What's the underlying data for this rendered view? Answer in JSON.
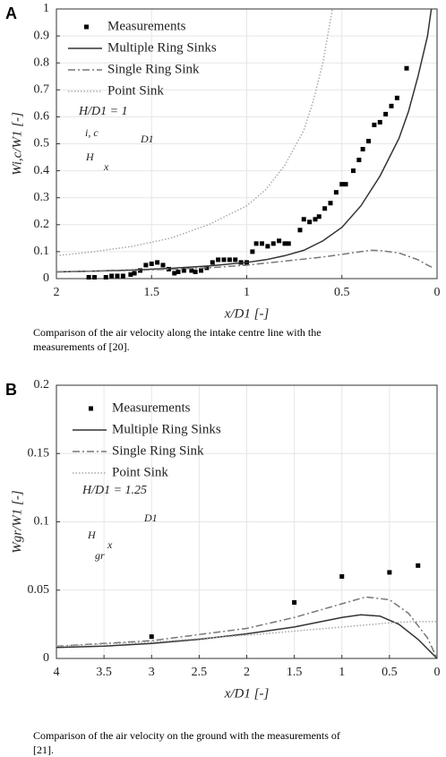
{
  "chart_data": [
    {
      "type": "line",
      "panel": "A",
      "xlabel": "x/D1 [-]",
      "ylabel": "Wi,c/W1 [-]",
      "caption": [
        "Comparison of the air velocity along the intake centre line with the",
        "measurements of [20]."
      ],
      "annotation": "H/D1 = 1",
      "inset_labels": [
        "i, c",
        "D1",
        "H",
        "x"
      ],
      "xlim": [
        2,
        0
      ],
      "xticks": [
        2,
        1.5,
        1,
        0.5,
        0
      ],
      "ylim": [
        0,
        1
      ],
      "yticks": [
        0,
        0.1,
        0.2,
        0.3,
        0.4,
        0.5,
        0.6,
        0.7,
        0.8,
        0.9,
        1
      ],
      "grid": true,
      "legend": "upper left",
      "series": [
        {
          "name": "Measurements",
          "color": "#000000",
          "style": "marker",
          "x": [
            1.83,
            1.8,
            1.74,
            1.71,
            1.68,
            1.65,
            1.61,
            1.59,
            1.56,
            1.53,
            1.5,
            1.47,
            1.44,
            1.41,
            1.38,
            1.36,
            1.33,
            1.29,
            1.27,
            1.24,
            1.21,
            1.18,
            1.15,
            1.12,
            1.09,
            1.06,
            1.03,
            1.0,
            0.97,
            0.95,
            0.92,
            0.89,
            0.86,
            0.83,
            0.8,
            0.78,
            0.72,
            0.7,
            0.67,
            0.64,
            0.62,
            0.59,
            0.56,
            0.53,
            0.5,
            0.48,
            0.44,
            0.41,
            0.39,
            0.36,
            0.33,
            0.3,
            0.27,
            0.24,
            0.21,
            0.16
          ],
          "values": [
            0.005,
            0.005,
            0.005,
            0.01,
            0.01,
            0.01,
            0.015,
            0.02,
            0.03,
            0.05,
            0.055,
            0.06,
            0.05,
            0.035,
            0.02,
            0.025,
            0.03,
            0.03,
            0.025,
            0.03,
            0.04,
            0.06,
            0.07,
            0.07,
            0.07,
            0.07,
            0.06,
            0.06,
            0.1,
            0.13,
            0.13,
            0.12,
            0.13,
            0.14,
            0.13,
            0.13,
            0.18,
            0.22,
            0.21,
            0.22,
            0.23,
            0.26,
            0.28,
            0.32,
            0.35,
            0.35,
            0.4,
            0.44,
            0.48,
            0.51,
            0.57,
            0.58,
            0.61,
            0.64,
            0.67,
            0.78
          ]
        },
        {
          "name": "Multiple Ring Sinks",
          "color": "#333333",
          "style": "solid",
          "x": [
            2,
            1.8,
            1.6,
            1.4,
            1.2,
            1.0,
            0.9,
            0.8,
            0.7,
            0.6,
            0.5,
            0.4,
            0.3,
            0.2,
            0.15,
            0.1,
            0.05,
            0.03
          ],
          "values": [
            0.025,
            0.028,
            0.032,
            0.038,
            0.047,
            0.06,
            0.07,
            0.085,
            0.105,
            0.14,
            0.19,
            0.27,
            0.38,
            0.52,
            0.62,
            0.75,
            0.9,
            1.0
          ]
        },
        {
          "name": "Single Ring Sink",
          "color": "#777777",
          "style": "dashdot",
          "x": [
            2,
            1.6,
            1.2,
            1.0,
            0.8,
            0.6,
            0.5,
            0.4,
            0.35,
            0.3,
            0.2,
            0.1,
            0.05,
            0.02
          ],
          "values": [
            0.025,
            0.03,
            0.04,
            0.05,
            0.065,
            0.08,
            0.09,
            0.1,
            0.105,
            0.104,
            0.095,
            0.07,
            0.05,
            0.04
          ]
        },
        {
          "name": "Point Sink",
          "color": "#aaaaaa",
          "style": "dotted",
          "x": [
            2,
            1.8,
            1.6,
            1.4,
            1.2,
            1.0,
            0.9,
            0.8,
            0.7,
            0.65,
            0.6,
            0.55
          ],
          "values": [
            0.085,
            0.1,
            0.12,
            0.15,
            0.2,
            0.27,
            0.33,
            0.42,
            0.55,
            0.66,
            0.8,
            1.0
          ]
        }
      ]
    },
    {
      "type": "line",
      "panel": "B",
      "xlabel": "x/D1 [-]",
      "ylabel": "Wgr/W1 [-]",
      "caption": [
        "Comparison of the air velocity on the ground with the measurements of",
        "[21]."
      ],
      "annotation": "H/D1 = 1.25",
      "inset_labels": [
        "D1",
        "H",
        "gr",
        "x"
      ],
      "xlim": [
        4,
        0
      ],
      "xticks": [
        4,
        3.5,
        3,
        2.5,
        2,
        1.5,
        1,
        0.5,
        0
      ],
      "ylim": [
        0,
        0.2
      ],
      "yticks": [
        0,
        0.05,
        0.1,
        0.15,
        0.2
      ],
      "grid": true,
      "legend": "upper left",
      "series": [
        {
          "name": "Measurements",
          "color": "#000000",
          "style": "marker",
          "x": [
            3,
            1.5,
            1,
            0.5,
            0.2
          ],
          "values": [
            0.016,
            0.041,
            0.06,
            0.063,
            0.068
          ]
        },
        {
          "name": "Multiple Ring Sinks",
          "color": "#333333",
          "style": "solid",
          "x": [
            4,
            3.5,
            3,
            2.5,
            2,
            1.5,
            1,
            0.8,
            0.6,
            0.4,
            0.2,
            0
          ],
          "values": [
            0.008,
            0.009,
            0.011,
            0.014,
            0.018,
            0.023,
            0.03,
            0.032,
            0.031,
            0.025,
            0.014,
            0
          ]
        },
        {
          "name": "Single Ring Sink",
          "color": "#777777",
          "style": "dashdot",
          "x": [
            4,
            3,
            2,
            1.5,
            1,
            0.75,
            0.5,
            0.3,
            0.1,
            0
          ],
          "values": [
            0.009,
            0.013,
            0.022,
            0.03,
            0.04,
            0.045,
            0.043,
            0.033,
            0.015,
            0
          ]
        },
        {
          "name": "Point Sink",
          "color": "#aaaaaa",
          "style": "dotted",
          "x": [
            4,
            3,
            2,
            1.5,
            1,
            0.5,
            0.25,
            0
          ],
          "values": [
            0.009,
            0.012,
            0.017,
            0.02,
            0.023,
            0.026,
            0.027,
            0.027
          ]
        }
      ]
    }
  ]
}
